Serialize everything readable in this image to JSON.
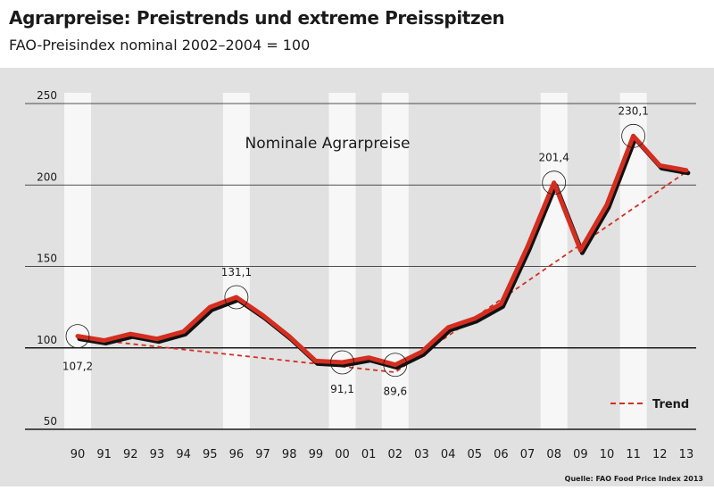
{
  "header": {
    "title": "Agrarpreise: Preistrends und extreme Preisspitzen",
    "subtitle": "FAO-Preisindex nominal 2002–2004 = 100"
  },
  "chart_data": {
    "type": "line",
    "title": "Nominale Agrarpreise",
    "x": [
      "90",
      "91",
      "92",
      "93",
      "94",
      "95",
      "96",
      "97",
      "98",
      "99",
      "00",
      "01",
      "02",
      "03",
      "04",
      "05",
      "06",
      "07",
      "08",
      "09",
      "10",
      "11",
      "12",
      "13"
    ],
    "series": [
      {
        "name": "",
        "values": [
          107.2,
          104.5,
          108.5,
          105.5,
          110,
          125,
          131.1,
          120,
          107,
          92,
          91.1,
          94,
          89.6,
          97.5,
          112.5,
          118,
          127,
          162,
          201.4,
          160,
          188,
          230.1,
          212,
          209
        ]
      }
    ],
    "trend": {
      "name": "Trend",
      "points": [
        [
          0,
          106
        ],
        [
          12,
          85
        ],
        [
          23,
          208
        ]
      ]
    },
    "annotations": [
      {
        "index": 0,
        "label": "107,2"
      },
      {
        "index": 6,
        "label": "131,1"
      },
      {
        "index": 10,
        "label": "91,1"
      },
      {
        "index": 12,
        "label": "89,6"
      },
      {
        "index": 18,
        "label": "201,4"
      },
      {
        "index": 21,
        "label": "230,1"
      }
    ],
    "yticks": [
      50,
      100,
      150,
      200,
      250
    ],
    "ylim": [
      50,
      250
    ],
    "shaded_years": [
      "90",
      "96",
      "00",
      "02",
      "08",
      "11"
    ],
    "source": "Quelle: FAO Food Price Index 2013",
    "colors": {
      "background": "#e1e1e1",
      "line": "#d42e20",
      "shadow": "#111111",
      "trend": "#d42e20",
      "band": "#f7f7f7"
    }
  }
}
